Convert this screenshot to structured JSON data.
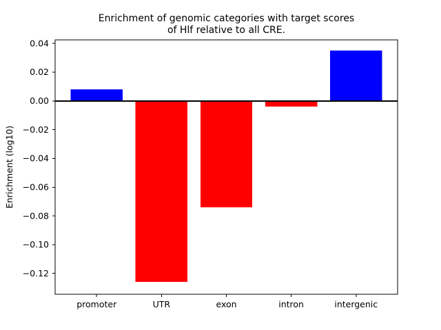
{
  "figure": {
    "background": "#ffffff",
    "axis_color": "#000000"
  },
  "chart_data": {
    "type": "bar",
    "title": "Enrichment of genomic categories with target scores\nof Hlf relative to all CRE.",
    "title_lines": [
      "Enrichment of genomic categories with target scores",
      "of Hlf relative to all CRE."
    ],
    "xlabel": "",
    "ylabel": "Enrichment (log10)",
    "categories": [
      "promoter",
      "UTR",
      "exon",
      "intron",
      "intergenic"
    ],
    "values": [
      0.008,
      -0.126,
      -0.074,
      -0.004,
      0.035
    ],
    "bar_colors": [
      "#0000ff",
      "#ff0000",
      "#ff0000",
      "#ff0000",
      "#0000ff"
    ],
    "positive_color": "#0000ff",
    "negative_color": "#ff0000",
    "ylim": [
      -0.1345,
      0.0425
    ],
    "yticks": [
      0.04,
      0.02,
      0,
      -0.02,
      -0.04,
      -0.06,
      -0.08,
      -0.1,
      -0.12
    ],
    "ytick_labels": [
      "0.04",
      "0.02",
      "0.00",
      "−0.02",
      "−0.04",
      "−0.06",
      "−0.08",
      "−0.10",
      "−0.12"
    ],
    "bar_width_fraction": 0.8,
    "grid": false,
    "zero_line": true,
    "legend": "none"
  }
}
